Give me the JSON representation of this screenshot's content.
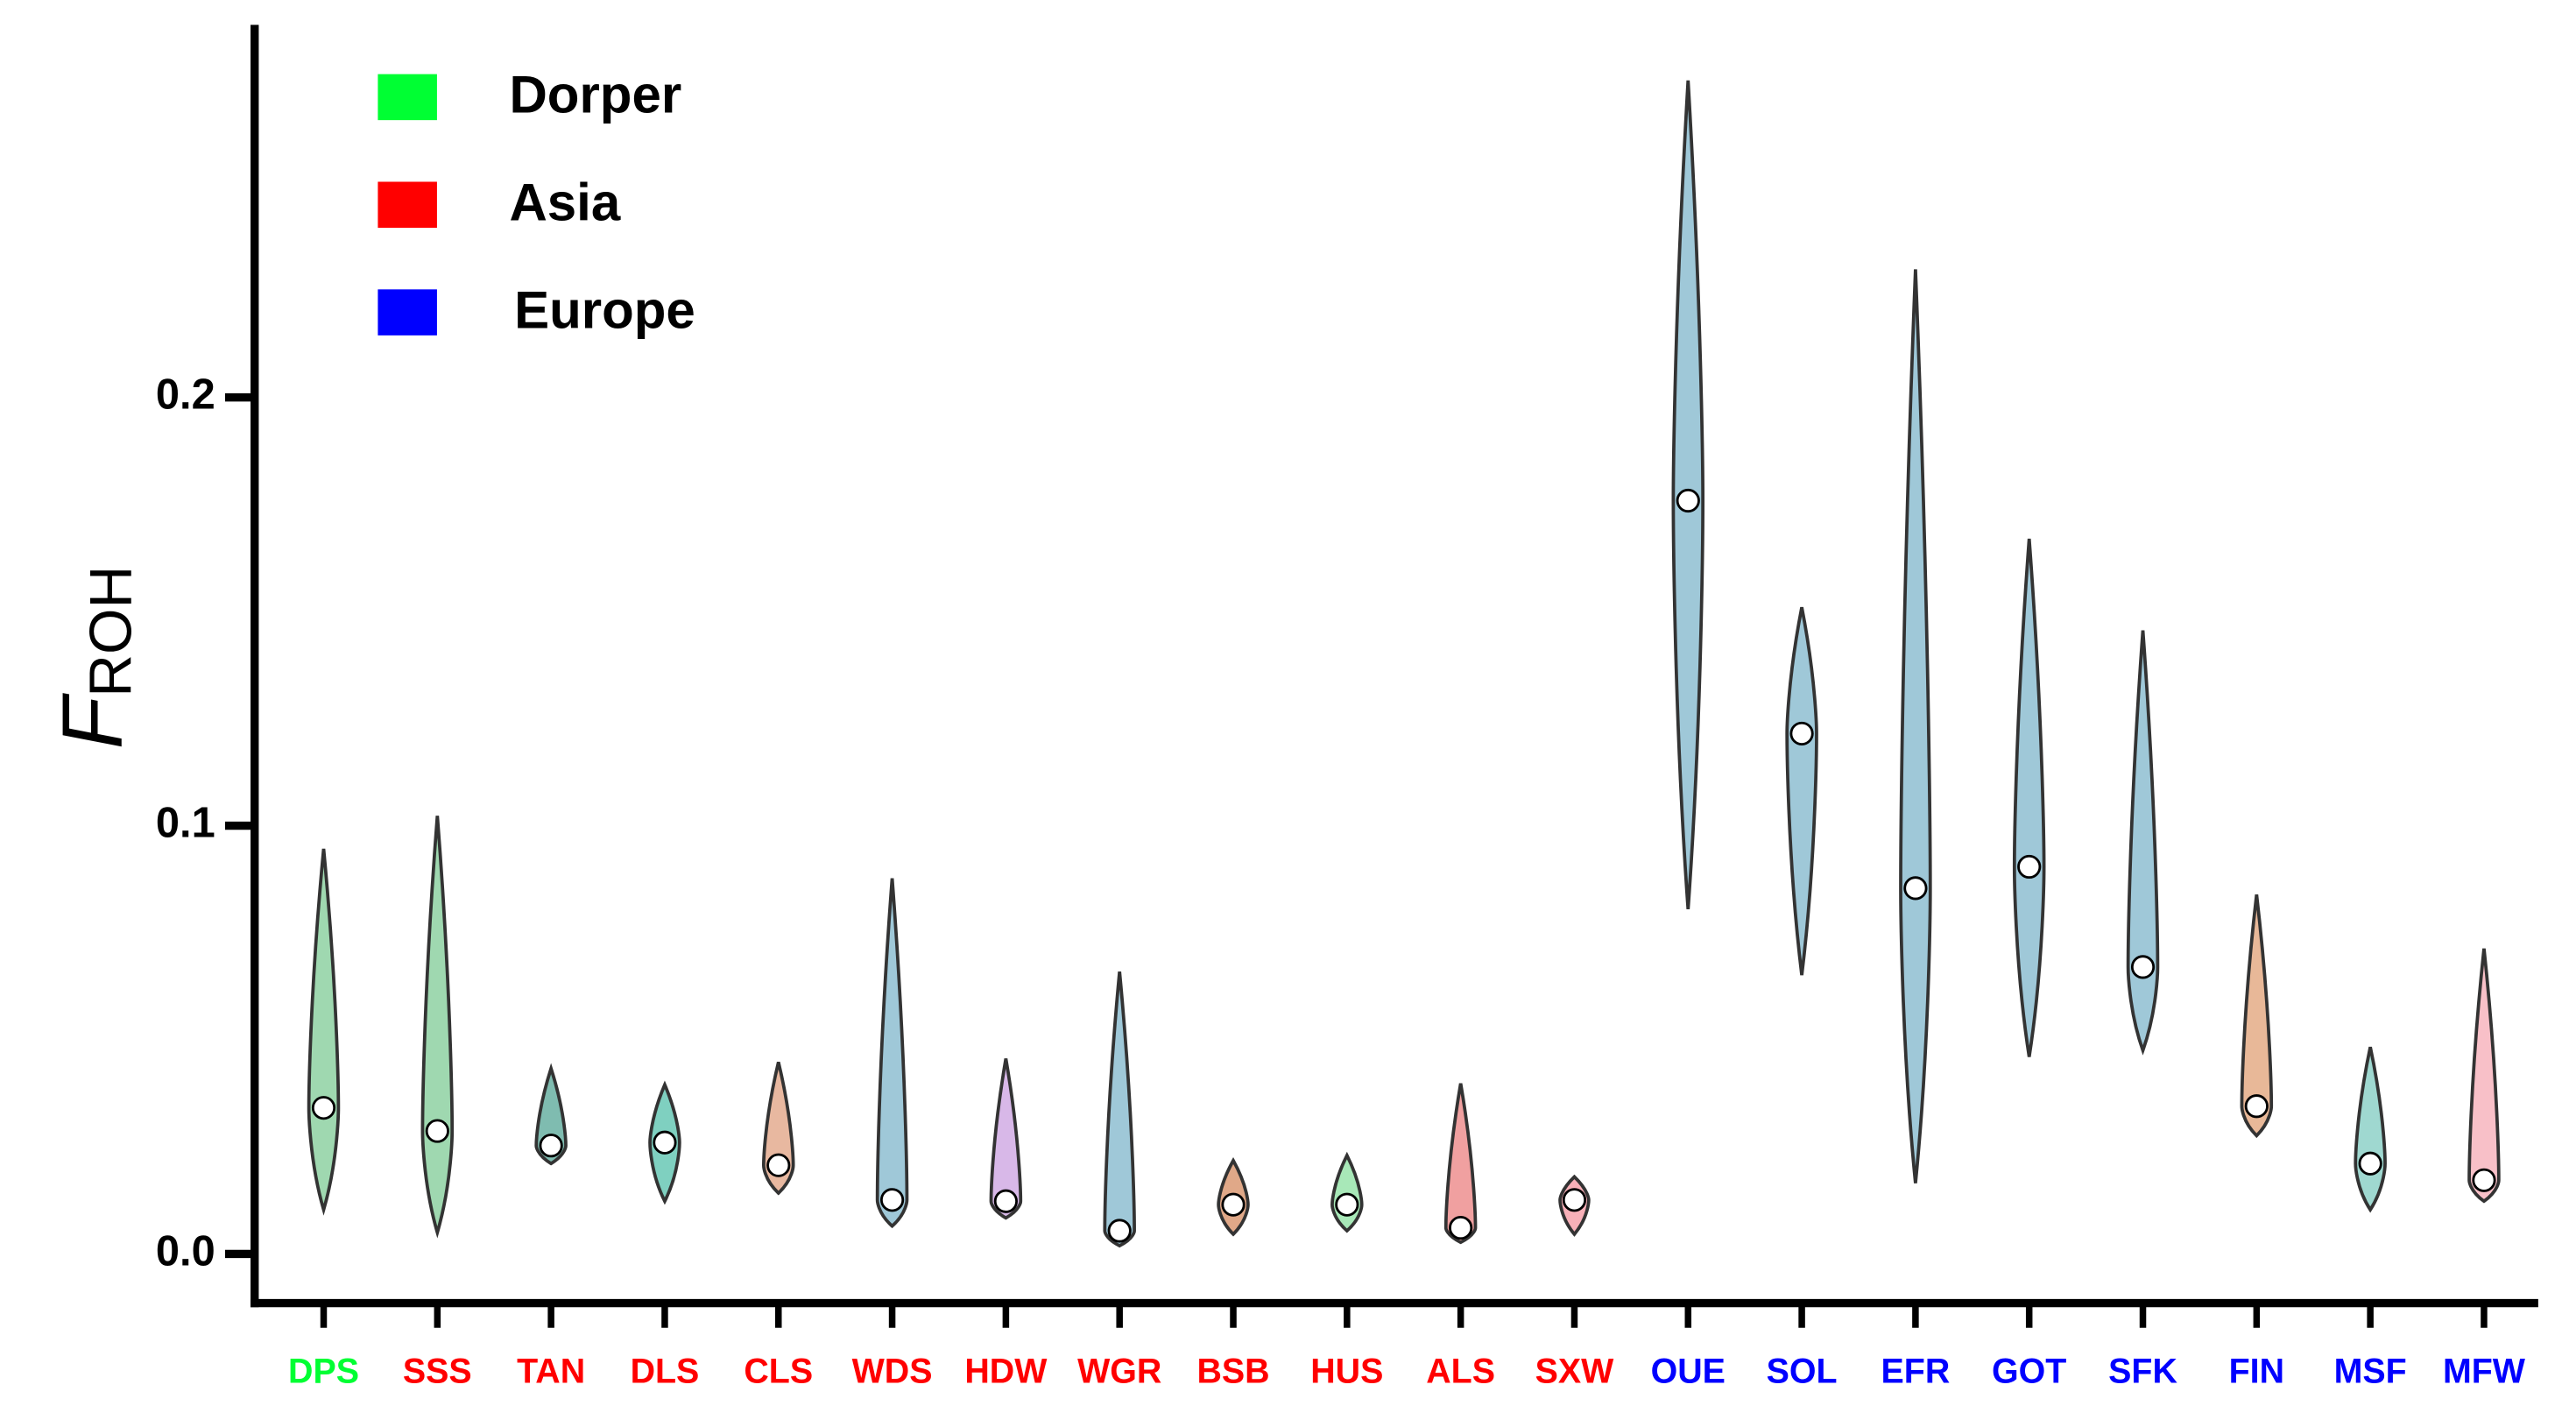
{
  "chart_data": {
    "type": "violin",
    "y_label": {
      "main": "F",
      "sub": "ROH"
    },
    "legend": [
      {
        "name": "Dorper",
        "color": "#00ff33"
      },
      {
        "name": "Asia",
        "color": "#ff0000"
      },
      {
        "name": "Europe",
        "color": "#0000ff"
      }
    ],
    "categories": [
      "DPS",
      "SSS",
      "TAN",
      "DLS",
      "CLS",
      "WDS",
      "HDW",
      "WGR",
      "BSB",
      "HUS",
      "ALS",
      "SXW",
      "OUE",
      "SOL",
      "EFR",
      "GOT",
      "SFK",
      "FIN",
      "MSF",
      "MFW"
    ],
    "category_colors": [
      "#00ff33",
      "#ff0000",
      "#ff0000",
      "#ff0000",
      "#ff0000",
      "#ff0000",
      "#ff0000",
      "#ff0000",
      "#ff0000",
      "#ff0000",
      "#ff0000",
      "#ff0000",
      "#0000ff",
      "#0000ff",
      "#0000ff",
      "#0000ff",
      "#0000ff",
      "#0000ff",
      "#0000ff",
      "#0000ff"
    ],
    "violin_colors": [
      "#9fd8b0",
      "#9fd8b0",
      "#7fbcb0",
      "#7fd0c0",
      "#e8b8a0",
      "#9fc8d8",
      "#d8b8e8",
      "#9fc8d8",
      "#e0a888",
      "#a8e8b8",
      "#f0a0a0",
      "#f8b0b8",
      "#9fc8d8",
      "#9fc8d8",
      "#9fc8d8",
      "#9fc8d8",
      "#9fc8d8",
      "#e8b898",
      "#9fd8d0",
      "#f8c0c8"
    ],
    "median": [
      0.0341,
      0.0287,
      0.0253,
      0.026,
      0.0207,
      0.0126,
      0.0123,
      0.0054,
      0.0115,
      0.0115,
      0.0061,
      0.0126,
      0.1759,
      0.1215,
      0.0854,
      0.0904,
      0.067,
      0.0345,
      0.0211,
      0.0172
    ],
    "max": [
      0.0946,
      0.1023,
      0.0433,
      0.0395,
      0.0448,
      0.0877,
      0.0456,
      0.0659,
      0.0218,
      0.023,
      0.0398,
      0.018,
      0.274,
      0.151,
      0.2299,
      0.167,
      0.1456,
      0.0839,
      0.0483,
      0.0713
    ],
    "min": [
      0.0103,
      0.005,
      0.0211,
      0.0123,
      0.0142,
      0.0065,
      0.0084,
      0.0019,
      0.0046,
      0.0054,
      0.0027,
      0.0046,
      0.0805,
      0.0651,
      0.0165,
      0.046,
      0.0475,
      0.0276,
      0.0103,
      0.0123
    ],
    "ylim": [
      -0.0115,
      0.287
    ],
    "yticks": [
      {
        "value": 0,
        "label": "0.0"
      },
      0.1,
      0.2
    ]
  }
}
